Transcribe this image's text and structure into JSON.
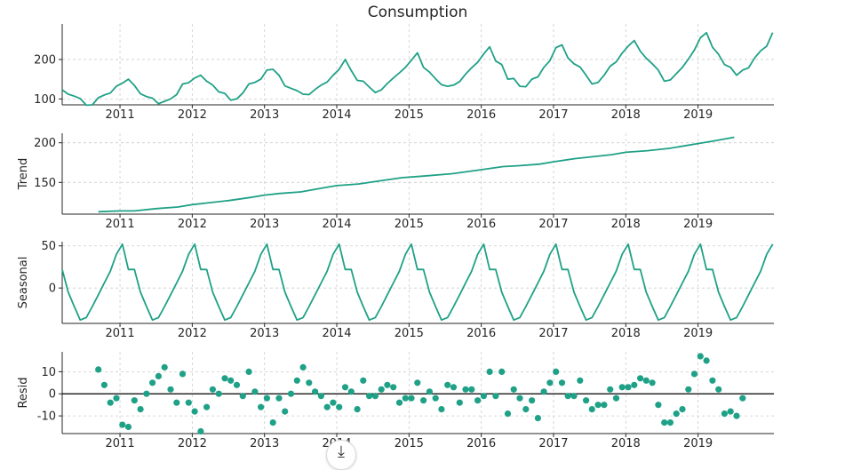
{
  "chart_data": [
    {
      "type": "line",
      "title": "Consumption",
      "ylabel": "",
      "ylim": [
        85,
        290
      ],
      "yticks": [
        100,
        200
      ],
      "xlim": [
        2010.2,
        2020.05
      ],
      "xticks": [
        2011,
        2012,
        2013,
        2014,
        2015,
        2016,
        2017,
        2018,
        2019
      ],
      "series": [
        {
          "start": 2010.2,
          "step": 0.0833333,
          "values": [
            123,
            112,
            107,
            101,
            84,
            85,
            103,
            110,
            115,
            132,
            140,
            150,
            134,
            113,
            106,
            102,
            88,
            94,
            100,
            111,
            138,
            141,
            153,
            160,
            145,
            135,
            118,
            114,
            97,
            100,
            115,
            138,
            142,
            150,
            173,
            175,
            160,
            133,
            127,
            121,
            112,
            111,
            124,
            135,
            143,
            160,
            175,
            200,
            172,
            147,
            145,
            130,
            116,
            123,
            139,
            153,
            166,
            180,
            198,
            217,
            180,
            168,
            151,
            136,
            132,
            135,
            144,
            163,
            179,
            193,
            214,
            232,
            196,
            187,
            150,
            152,
            132,
            131,
            150,
            156,
            180,
            197,
            230,
            237,
            204,
            189,
            181,
            160,
            138,
            142,
            160,
            183,
            194,
            216,
            234,
            248,
            221,
            203,
            189,
            173,
            145,
            148,
            164,
            180,
            201,
            224,
            255,
            268,
            231,
            213,
            187,
            180,
            160,
            173,
            179,
            204,
            222,
            234,
            268,
            285
          ]
        }
      ]
    },
    {
      "type": "line",
      "ylabel": "Trend",
      "ylim": [
        110,
        212
      ],
      "yticks": [
        150,
        200
      ],
      "xlim": [
        2010.2,
        2020.05
      ],
      "xticks": [
        2011,
        2012,
        2013,
        2014,
        2015,
        2016,
        2017,
        2018,
        2019
      ],
      "series": [
        {
          "x": [
            2010.7,
            2011.0,
            2011.2,
            2011.5,
            2011.8,
            2012.0,
            2012.2,
            2012.5,
            2012.8,
            2013.0,
            2013.2,
            2013.5,
            2013.8,
            2014.0,
            2014.3,
            2014.6,
            2014.9,
            2015.2,
            2015.6,
            2016.0,
            2016.3,
            2016.5,
            2016.8,
            2017.0,
            2017.3,
            2017.6,
            2017.8,
            2018.0,
            2018.3,
            2018.6,
            2018.8,
            2019.0,
            2019.2,
            2019.5
          ],
          "values": [
            113,
            114,
            114,
            117,
            119,
            122,
            124,
            127,
            131,
            134,
            136,
            138,
            143,
            146,
            148,
            152,
            156,
            158,
            161,
            166,
            170,
            171,
            173,
            176,
            180,
            183,
            185,
            188,
            190,
            193,
            196,
            199,
            202,
            207
          ]
        }
      ]
    },
    {
      "type": "line",
      "ylabel": "Seasonal",
      "ylim": [
        -42,
        55
      ],
      "yticks": [
        0,
        50
      ],
      "xlim": [
        2010.2,
        2020.05
      ],
      "xticks": [
        2011,
        2012,
        2013,
        2014,
        2015,
        2016,
        2017,
        2018,
        2019
      ],
      "series": [
        {
          "start": 2010.2,
          "step": 0.0833333,
          "values_one_year": [
            22,
            -5,
            -22,
            -38,
            -35,
            -22,
            -8,
            6,
            20,
            40,
            52,
            22
          ]
        }
      ]
    },
    {
      "type": "scatter",
      "ylabel": "Resid",
      "ylim": [
        -18,
        19
      ],
      "yticks": [
        -10,
        0,
        10
      ],
      "baseline": 0,
      "xlim": [
        2010.2,
        2020.05
      ],
      "xticks": [
        2011,
        2012,
        2013,
        2014,
        2015,
        2016,
        2017,
        2018,
        2019
      ],
      "series": [
        {
          "start": 2010.7,
          "step": 0.0833333,
          "values": [
            11,
            4,
            -4,
            -2,
            -14,
            -15,
            -3,
            -7,
            0,
            5,
            8,
            12,
            2,
            -4,
            9,
            -4,
            -8,
            -17,
            -6,
            2,
            0,
            7,
            6,
            4,
            -1,
            10,
            1,
            -6,
            -2,
            -13,
            -2,
            -8,
            0,
            6,
            12,
            5,
            1,
            -1,
            -6,
            -4,
            -6,
            3,
            1,
            -7,
            6,
            -1,
            -1,
            2,
            4,
            3,
            -4,
            -2,
            -2,
            5,
            -3,
            1,
            -2,
            -7,
            4,
            3,
            -4,
            2,
            2,
            -3,
            -1,
            10,
            -1,
            10,
            -9,
            2,
            -2,
            -7,
            -3,
            -11,
            1,
            5,
            10,
            5,
            -1,
            -1,
            6,
            -3,
            -7,
            -5,
            -5,
            2,
            -2,
            3,
            3,
            4,
            7,
            6,
            5,
            -5,
            -13,
            -13,
            -9,
            -7,
            2,
            9,
            17,
            15,
            6,
            2,
            -9,
            -8,
            -10,
            -2
          ]
        }
      ]
    }
  ],
  "download_icon": "download-icon"
}
